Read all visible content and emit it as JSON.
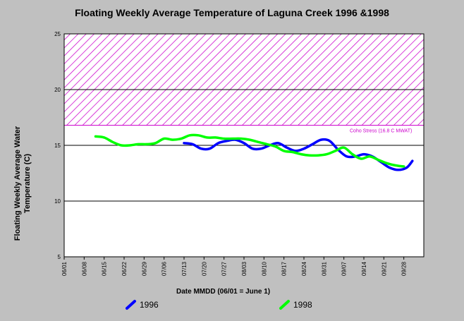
{
  "chart_data": {
    "type": "line",
    "title": "Floating Weekly Average Temperature of Laguna Creek 1996 &1998",
    "xlabel": "Date MMDD (06/01 = June 1)",
    "ylabel": "Floating Weekly Average Water Temperature (C)",
    "categories": [
      "06/01",
      "06/08",
      "06/15",
      "06/22",
      "06/29",
      "07/06",
      "07/13",
      "07/20",
      "07/27",
      "08/03",
      "08/10",
      "08/17",
      "08/24",
      "08/31",
      "09/07",
      "09/14",
      "09/21",
      "09/28"
    ],
    "y_ticks": [
      "5",
      "10",
      "15",
      "20",
      "25"
    ],
    "ylim": [
      5,
      25
    ],
    "grid": "horizontal",
    "legend_position": "bottom",
    "series": [
      {
        "name": "1996",
        "color": "#0000ff",
        "x": [
          "07/13",
          "07/16",
          "07/19",
          "07/22",
          "07/25",
          "07/28",
          "07/31",
          "08/03",
          "08/06",
          "08/09",
          "08/12",
          "08/15",
          "08/18",
          "08/21",
          "08/24",
          "08/27",
          "08/30",
          "09/02",
          "09/05",
          "09/08",
          "09/11",
          "09/14",
          "09/17",
          "09/20",
          "09/23",
          "09/26",
          "09/29",
          "10/01"
        ],
        "values": [
          15.2,
          15.1,
          14.7,
          14.7,
          15.2,
          15.4,
          15.5,
          15.2,
          14.7,
          14.7,
          15.0,
          15.2,
          14.8,
          14.5,
          14.7,
          15.1,
          15.5,
          15.4,
          14.6,
          14.0,
          14.0,
          14.2,
          14.0,
          13.5,
          13.0,
          12.8,
          13.0,
          13.6
        ]
      },
      {
        "name": "1998",
        "color": "#00ff00",
        "x": [
          "06/12",
          "06/15",
          "06/18",
          "06/21",
          "06/24",
          "06/27",
          "06/30",
          "07/03",
          "07/06",
          "07/09",
          "07/12",
          "07/15",
          "07/18",
          "07/21",
          "07/24",
          "07/27",
          "07/30",
          "08/02",
          "08/05",
          "08/08",
          "08/11",
          "08/14",
          "08/17",
          "08/20",
          "08/23",
          "08/26",
          "08/29",
          "09/01",
          "09/04",
          "09/07",
          "09/10",
          "09/13",
          "09/16",
          "09/19",
          "09/22",
          "09/25",
          "09/28"
        ],
        "values": [
          15.8,
          15.7,
          15.3,
          15.0,
          15.0,
          15.1,
          15.1,
          15.2,
          15.6,
          15.5,
          15.6,
          15.9,
          15.9,
          15.7,
          15.7,
          15.6,
          15.6,
          15.6,
          15.5,
          15.3,
          15.1,
          14.9,
          14.5,
          14.4,
          14.2,
          14.1,
          14.1,
          14.2,
          14.5,
          14.8,
          14.2,
          13.8,
          14.0,
          13.7,
          13.4,
          13.2,
          13.1
        ]
      }
    ],
    "annotations": [
      {
        "text": "Coho Stress (16.8 C MWAT)",
        "y": 16.8,
        "color": "#cc00cc",
        "band": [
          16.8,
          25
        ]
      }
    ]
  },
  "legend": [
    {
      "label": "1996",
      "color": "#0000ff",
      "swatch": "blue-dash-icon"
    },
    {
      "label": "1998",
      "color": "#00ff00",
      "swatch": "green-dash-icon"
    }
  ],
  "colors": {
    "background": "#c0c0c0",
    "plot_background": "#ffffff",
    "gridline": "#000000",
    "hatch": "#cc00cc"
  }
}
